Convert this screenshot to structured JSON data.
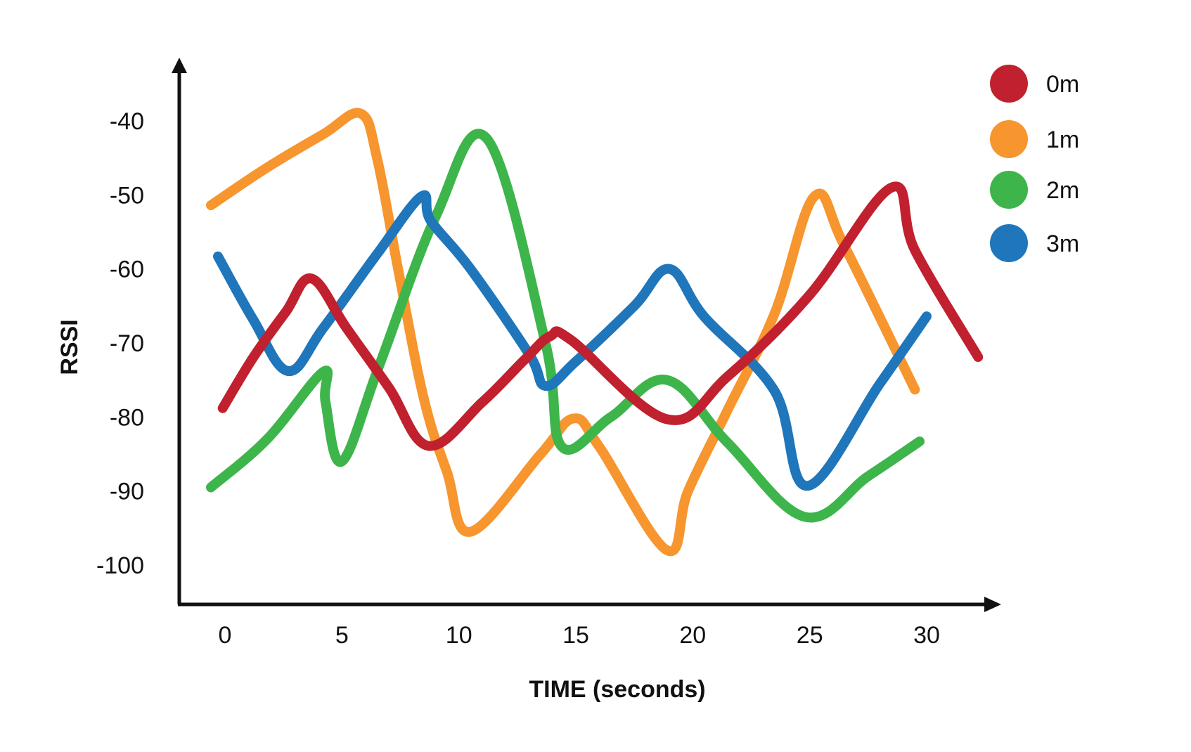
{
  "chart_data": {
    "type": "line",
    "title": "",
    "xlabel": "TIME (seconds)",
    "ylabel": "RSSI",
    "xlim": [
      -1.8,
      33.5
    ],
    "ylim": [
      -105.5,
      -33
    ],
    "x_ticks": [
      0,
      5,
      10,
      15,
      20,
      25,
      30
    ],
    "x_tick_labels": [
      "0",
      "5",
      "10",
      "15",
      "20",
      "25",
      "30"
    ],
    "y_ticks": [
      -40,
      -50,
      -60,
      -70,
      -80,
      -90,
      -100
    ],
    "y_tick_labels": [
      "-40",
      "-50",
      "-60",
      "-70",
      "-80",
      "-90",
      "-100"
    ],
    "grid": false,
    "legend_position": "top-right",
    "series": [
      {
        "name": "0m",
        "color": "#c1202f",
        "points": [
          [
            -0.1,
            -78.8
          ],
          [
            1.2,
            -72.0
          ],
          [
            2.6,
            -65.8
          ],
          [
            3.7,
            -61.3
          ],
          [
            5.2,
            -68.0
          ],
          [
            7.0,
            -76.0
          ],
          [
            8.7,
            -83.9
          ],
          [
            11.0,
            -78.0
          ],
          [
            12.8,
            -72.3
          ],
          [
            13.9,
            -69.1
          ],
          [
            14.8,
            -69.6
          ],
          [
            18.9,
            -80.3
          ],
          [
            21.5,
            -74.5
          ],
          [
            25.0,
            -63.5
          ],
          [
            28.5,
            -49.0
          ],
          [
            29.5,
            -57.5
          ],
          [
            32.2,
            -71.9
          ]
        ]
      },
      {
        "name": "1m",
        "color": "#f7952e",
        "points": [
          [
            -0.6,
            -51.4
          ],
          [
            1.8,
            -46.3
          ],
          [
            4.2,
            -41.8
          ],
          [
            5.8,
            -39.0
          ],
          [
            6.5,
            -45.0
          ],
          [
            7.4,
            -60.0
          ],
          [
            8.5,
            -77.5
          ],
          [
            9.5,
            -87.5
          ],
          [
            10.5,
            -95.5
          ],
          [
            13.5,
            -85.0
          ],
          [
            14.9,
            -80.2
          ],
          [
            16.0,
            -84.0
          ],
          [
            18.9,
            -98.0
          ],
          [
            19.8,
            -90.0
          ],
          [
            21.5,
            -79.0
          ],
          [
            23.5,
            -66.0
          ],
          [
            25.2,
            -50.2
          ],
          [
            26.5,
            -57.0
          ],
          [
            29.5,
            -76.3
          ]
        ]
      },
      {
        "name": "2m",
        "color": "#3db54a",
        "points": [
          [
            -0.6,
            -89.5
          ],
          [
            1.8,
            -83.0
          ],
          [
            4.2,
            -73.9
          ],
          [
            4.3,
            -78.0
          ],
          [
            5.0,
            -86.0
          ],
          [
            6.6,
            -73.0
          ],
          [
            9.0,
            -53.0
          ],
          [
            11.2,
            -42.4
          ],
          [
            13.7,
            -70.0
          ],
          [
            14.4,
            -84.0
          ],
          [
            16.5,
            -80.0
          ],
          [
            18.9,
            -75.0
          ],
          [
            21.5,
            -83.5
          ],
          [
            24.8,
            -93.5
          ],
          [
            27.5,
            -88.0
          ],
          [
            29.7,
            -83.3
          ]
        ]
      },
      {
        "name": "3m",
        "color": "#1f76bb",
        "points": [
          [
            -0.3,
            -58.3
          ],
          [
            1.2,
            -66.8
          ],
          [
            2.7,
            -73.8
          ],
          [
            4.2,
            -68.0
          ],
          [
            6.5,
            -58.0
          ],
          [
            8.4,
            -50.2
          ],
          [
            8.8,
            -53.5
          ],
          [
            10.5,
            -60.0
          ],
          [
            13.0,
            -71.5
          ],
          [
            13.7,
            -75.8
          ],
          [
            15.0,
            -72.5
          ],
          [
            17.5,
            -65.0
          ],
          [
            19.0,
            -60.0
          ],
          [
            20.5,
            -66.5
          ],
          [
            23.5,
            -76.5
          ],
          [
            24.9,
            -89.3
          ],
          [
            28.0,
            -75.5
          ],
          [
            30.0,
            -66.4
          ]
        ]
      }
    ]
  }
}
